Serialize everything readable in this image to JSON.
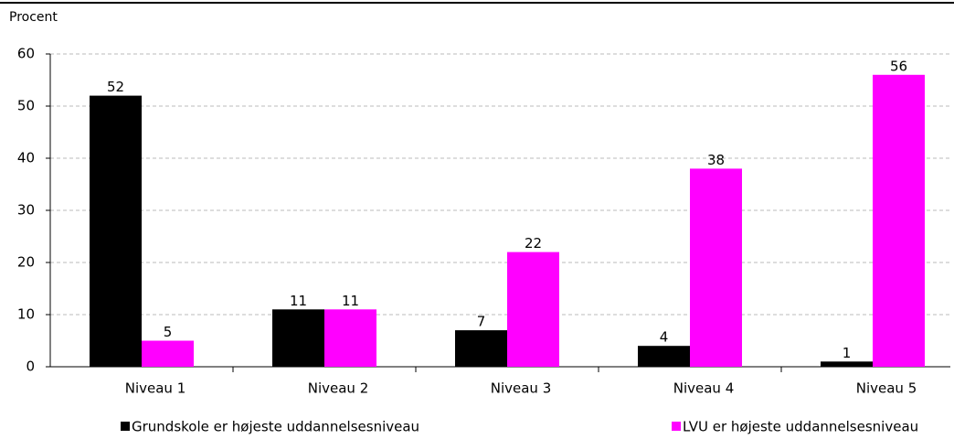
{
  "chart_data": {
    "type": "bar",
    "y_label": "Procent",
    "categories": [
      "Niveau 1",
      "Niveau 2",
      "Niveau 3",
      "Niveau 4",
      "Niveau 5"
    ],
    "series": [
      {
        "name": "Grundskole er højeste uddannelsesniveau",
        "color": "#000000",
        "values": [
          52,
          11,
          7,
          4,
          1
        ]
      },
      {
        "name": "LVU er højeste uddannelsesniveau",
        "color": "#ff00ff",
        "values": [
          5,
          11,
          22,
          38,
          56
        ]
      }
    ],
    "ylim": [
      0,
      60
    ],
    "yticks": [
      0,
      10,
      20,
      30,
      40,
      50,
      60
    ],
    "grid": true
  }
}
